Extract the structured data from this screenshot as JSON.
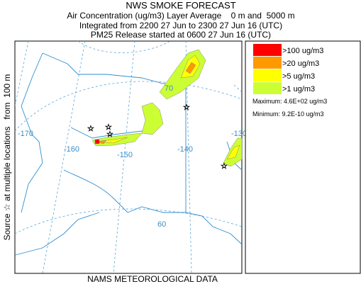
{
  "header": {
    "title": "NWS SMOKE FORECAST",
    "lines": [
      "Air Concentration (ug/m3) Layer Average    0 m and  5000 m",
      "Integrated from 2200 27 Jun to 2300 27 Jun 16 (UTC)",
      "PM25 Release started at 0600 27 Jun 16 (UTC)"
    ]
  },
  "side_label": "Source ☆ at multiple locations   from  100 m",
  "footer": "NAMS METEOROLOGICAL DATA",
  "map": {
    "grid_labels": [
      "-170",
      "-160",
      "-150",
      "-140",
      "-130",
      "70",
      "60"
    ]
  },
  "legend": {
    "items": [
      {
        "label": ">100 ug/m3",
        "color": "#ff0000"
      },
      {
        "label": ">20 ug/m3",
        "color": "#ff9900"
      },
      {
        "label": ">5 ug/m3",
        "color": "#ffff00"
      },
      {
        "label": ">1 ug/m3",
        "color": "#ccff33"
      }
    ],
    "maximum": "Maximum: 4.6E+02 ug/m3",
    "minimum": "Minimum: 9.2E-10 ug/m3"
  }
}
